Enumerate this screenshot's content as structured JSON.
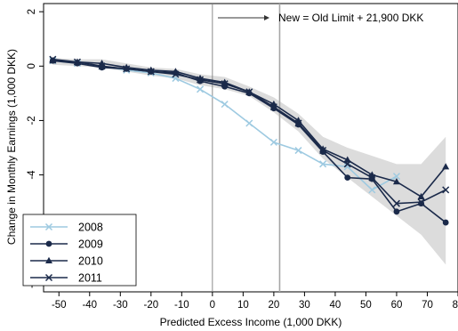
{
  "chart_data": {
    "type": "line",
    "title": "",
    "xlabel": "Predicted Excess Income (1,000 DKK)",
    "ylabel": "Change in Monthly Earnings (1,000 DKK)",
    "xlim": [
      -55,
      80
    ],
    "ylim": [
      -8.3,
      2.3
    ],
    "xticks": [
      -50,
      -40,
      -30,
      -20,
      -10,
      0,
      10,
      20,
      30,
      40,
      50,
      60,
      70,
      80
    ],
    "yticks": [
      2,
      0,
      -2,
      -4,
      -6,
      -8
    ],
    "grid": false,
    "legend_position": "bottom-left",
    "reference_lines": [
      {
        "x": 0,
        "color": "#7f7f7f"
      },
      {
        "x": 21.9,
        "color": "#a6a6a6"
      }
    ],
    "annotation": {
      "text": "New = Old Limit + 21,900 DKK",
      "arrow": true
    },
    "confidence_band": {
      "color": "#dcdcdc",
      "x": [
        -52,
        -44,
        -36,
        -28,
        -20,
        -12,
        -4,
        4,
        12,
        20,
        28,
        36,
        44,
        52,
        60,
        68,
        76
      ],
      "lower": [
        0.05,
        0.0,
        -0.05,
        -0.2,
        -0.35,
        -0.45,
        -0.7,
        -0.85,
        -1.1,
        -1.7,
        -2.4,
        -3.4,
        -4.1,
        -4.8,
        -5.5,
        -6.2,
        -7.3
      ],
      "upper": [
        0.3,
        0.25,
        0.25,
        0.1,
        -0.05,
        -0.1,
        -0.3,
        -0.4,
        -0.75,
        -1.15,
        -1.75,
        -2.6,
        -3.0,
        -3.3,
        -3.6,
        -3.6,
        -2.6
      ]
    },
    "series": [
      {
        "name": "2008",
        "color": "#9ecae1",
        "marker": "x",
        "x": [
          -52,
          -44,
          -36,
          -28,
          -20,
          -12,
          -4,
          4,
          12,
          20,
          28,
          36,
          44,
          52,
          60
        ],
        "values": [
          0.2,
          0.1,
          0.0,
          -0.15,
          -0.25,
          -0.45,
          -0.85,
          -1.4,
          -2.1,
          -2.8,
          -3.1,
          -3.6,
          -3.7,
          -4.55,
          -4.05
        ]
      },
      {
        "name": "2009",
        "color": "#1b2a4a",
        "marker": "circle",
        "x": [
          -52,
          -44,
          -36,
          -28,
          -20,
          -12,
          -4,
          4,
          12,
          20,
          28,
          36,
          44,
          52,
          60,
          68,
          76
        ],
        "values": [
          0.2,
          0.1,
          -0.05,
          -0.1,
          -0.2,
          -0.25,
          -0.55,
          -0.75,
          -1.0,
          -1.55,
          -2.15,
          -3.15,
          -4.1,
          -4.15,
          -5.35,
          -5.05,
          -5.75
        ]
      },
      {
        "name": "2010",
        "color": "#1b2a4a",
        "marker": "triangle",
        "x": [
          -52,
          -44,
          -36,
          -28,
          -20,
          -12,
          -4,
          4,
          12,
          20,
          28,
          36,
          44,
          52,
          60,
          68,
          76
        ],
        "values": [
          0.2,
          0.15,
          0.1,
          -0.05,
          -0.15,
          -0.2,
          -0.45,
          -0.6,
          -0.95,
          -1.4,
          -2.0,
          -3.05,
          -3.45,
          -4.0,
          -4.25,
          -4.8,
          -3.7
        ]
      },
      {
        "name": "2011",
        "color": "#1b2a4a",
        "marker": "x",
        "x": [
          -52,
          -44,
          -36,
          -28,
          -20,
          -12,
          -4,
          4,
          12,
          20,
          28,
          36,
          44,
          52,
          60,
          68,
          76
        ],
        "values": [
          0.25,
          0.15,
          0.0,
          -0.1,
          -0.2,
          -0.3,
          -0.5,
          -0.65,
          -0.95,
          -1.5,
          -2.1,
          -3.1,
          -3.6,
          -4.1,
          -5.05,
          -5.0,
          -4.55
        ]
      }
    ]
  }
}
